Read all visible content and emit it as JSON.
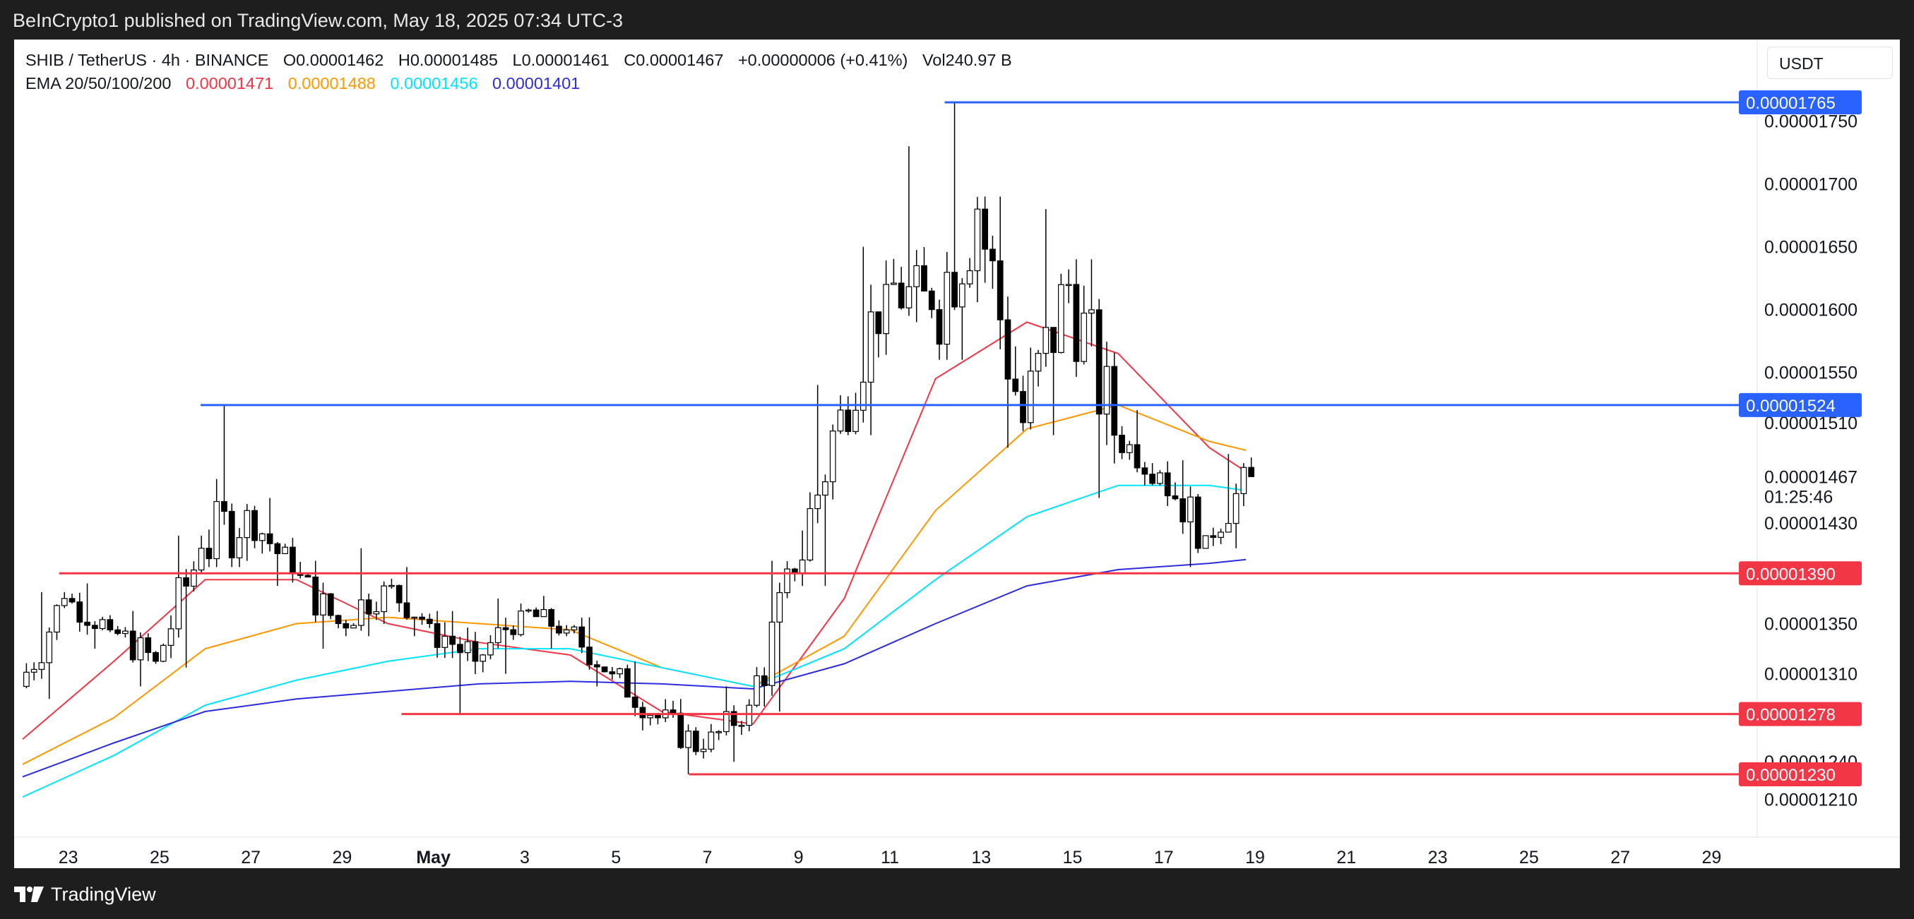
{
  "header": {
    "publisher": "BeInCrypto1 published on TradingView.com, May 18, 2025 07:34 UTC-3"
  },
  "legend": {
    "symbol": "SHIB / TetherUS · 4h · BINANCE",
    "open": "O0.00001462",
    "high": "H0.00001485",
    "low": "L0.00001461",
    "close": "C0.00001467",
    "change": "+0.00000006 (+0.41%)",
    "volume": "Vol240.97 B",
    "ema_label": "EMA 20/50/100/200",
    "ema20": "0.00001471",
    "ema50": "0.00001488",
    "ema100": "0.00001456",
    "ema200": "0.00001401"
  },
  "currency": "USDT",
  "footer": {
    "brand": "TradingView"
  },
  "colors": {
    "ema20": "#f23645",
    "ema50": "#ff9800",
    "ema100": "#00e5ff",
    "ema200": "#2d2de0",
    "resistance": "#2962ff",
    "support": "#f23645",
    "candle_up": "#ffffff",
    "candle_down": "#000000"
  },
  "chart_data": {
    "type": "candlestick",
    "symbol": "SHIB / TetherUS",
    "timeframe": "4h",
    "y_ticks": [
      "0.00001750",
      "0.00001700",
      "0.00001650",
      "0.00001600",
      "0.00001550",
      "0.00001510",
      "0.00001430",
      "0.00001350",
      "0.00001310",
      "0.00001240",
      "0.00001210"
    ],
    "x_ticks": [
      "23",
      "25",
      "27",
      "29",
      "May",
      "3",
      "5",
      "7",
      "9",
      "11",
      "13",
      "15",
      "17",
      "19",
      "21",
      "23",
      "25",
      "27",
      "29"
    ],
    "last_price": "0.00001467",
    "countdown": "01:25:46",
    "levels": [
      {
        "price": 1.765e-05,
        "label": "0.00001765",
        "kind": "resistance",
        "start_day": 12.2
      },
      {
        "price": 1.524e-05,
        "label": "0.00001524",
        "kind": "resistance",
        "start_day": 25.9
      },
      {
        "price": 1.39e-05,
        "label": "0.00001390",
        "kind": "support",
        "start_day": 22.8
      },
      {
        "price": 1.278e-05,
        "label": "0.00001278",
        "kind": "support",
        "start_day": 30.3
      },
      {
        "price": 1.23e-05,
        "label": "0.00001230",
        "kind": "support",
        "start_day": 6.6
      }
    ],
    "ohlc_daily": [
      {
        "day": "Apr 22",
        "o": 1.3e-05,
        "h": 1.375e-05,
        "l": 1.29e-05,
        "c": 1.37e-05
      },
      {
        "day": "Apr 23",
        "o": 1.37e-05,
        "h": 1.382e-05,
        "l": 1.33e-05,
        "c": 1.345e-05
      },
      {
        "day": "Apr 24",
        "o": 1.345e-05,
        "h": 1.36e-05,
        "l": 1.3e-05,
        "c": 1.32e-05
      },
      {
        "day": "Apr 25",
        "o": 1.32e-05,
        "h": 1.42e-05,
        "l": 1.315e-05,
        "c": 1.41e-05
      },
      {
        "day": "Apr 26",
        "o": 1.41e-05,
        "h": 1.524e-05,
        "l": 1.395e-05,
        "c": 1.44e-05
      },
      {
        "day": "Apr 27",
        "o": 1.44e-05,
        "h": 1.45e-05,
        "l": 1.38e-05,
        "c": 1.39e-05
      },
      {
        "day": "Apr 28",
        "o": 1.39e-05,
        "h": 1.4e-05,
        "l": 1.33e-05,
        "c": 1.35e-05
      },
      {
        "day": "Apr 29",
        "o": 1.35e-05,
        "h": 1.41e-05,
        "l": 1.34e-05,
        "c": 1.38e-05
      },
      {
        "day": "Apr 30",
        "o": 1.38e-05,
        "h": 1.395e-05,
        "l": 1.34e-05,
        "c": 1.35e-05
      },
      {
        "day": "May 1",
        "o": 1.35e-05,
        "h": 1.36e-05,
        "l": 1.278e-05,
        "c": 1.32e-05
      },
      {
        "day": "May 2",
        "o": 1.32e-05,
        "h": 1.37e-05,
        "l": 1.31e-05,
        "c": 1.36e-05
      },
      {
        "day": "May 3",
        "o": 1.36e-05,
        "h": 1.372e-05,
        "l": 1.33e-05,
        "c": 1.345e-05
      },
      {
        "day": "May 4",
        "o": 1.345e-05,
        "h": 1.355e-05,
        "l": 1.3e-05,
        "c": 1.31e-05
      },
      {
        "day": "May 5",
        "o": 1.31e-05,
        "h": 1.32e-05,
        "l": 1.265e-05,
        "c": 1.275e-05
      },
      {
        "day": "May 6",
        "o": 1.275e-05,
        "h": 1.29e-05,
        "l": 1.23e-05,
        "c": 1.25e-05
      },
      {
        "day": "May 7",
        "o": 1.25e-05,
        "h": 1.3e-05,
        "l": 1.24e-05,
        "c": 1.285e-05
      },
      {
        "day": "May 8",
        "o": 1.285e-05,
        "h": 1.4e-05,
        "l": 1.28e-05,
        "c": 1.39e-05
      },
      {
        "day": "May 9",
        "o": 1.39e-05,
        "h": 1.54e-05,
        "l": 1.38e-05,
        "c": 1.52e-05
      },
      {
        "day": "May 10",
        "o": 1.52e-05,
        "h": 1.65e-05,
        "l": 1.5e-05,
        "c": 1.62e-05
      },
      {
        "day": "May 11",
        "o": 1.62e-05,
        "h": 1.73e-05,
        "l": 1.59e-05,
        "c": 1.6e-05
      },
      {
        "day": "May 12",
        "o": 1.6e-05,
        "h": 1.765e-05,
        "l": 1.56e-05,
        "c": 1.68e-05
      },
      {
        "day": "May 13",
        "o": 1.68e-05,
        "h": 1.69e-05,
        "l": 1.49e-05,
        "c": 1.51e-05
      },
      {
        "day": "May 14",
        "o": 1.51e-05,
        "h": 1.68e-05,
        "l": 1.5e-05,
        "c": 1.62e-05
      },
      {
        "day": "May 15",
        "o": 1.62e-05,
        "h": 1.64e-05,
        "l": 1.45e-05,
        "c": 1.5e-05
      },
      {
        "day": "May 16",
        "o": 1.5e-05,
        "h": 1.52e-05,
        "l": 1.46e-05,
        "c": 1.47e-05
      },
      {
        "day": "May 17",
        "o": 1.47e-05,
        "h": 1.48e-05,
        "l": 1.395e-05,
        "c": 1.42e-05
      },
      {
        "day": "May 18",
        "o": 1.42e-05,
        "h": 1.485e-05,
        "l": 1.41e-05,
        "c": 1.467e-05
      }
    ],
    "ema_series": [
      {
        "name": "EMA 20",
        "day_values": [
          [
            22,
            1.258e-05
          ],
          [
            24,
            1.32e-05
          ],
          [
            26,
            1.385e-05
          ],
          [
            28,
            1.385e-05
          ],
          [
            30,
            1.35e-05
          ],
          [
            32,
            1.335e-05
          ],
          [
            34,
            1.325e-05
          ],
          [
            36,
            1.28e-05
          ],
          [
            38,
            1.27e-05
          ],
          [
            40,
            1.37e-05
          ],
          [
            42,
            1.545e-05
          ],
          [
            44,
            1.59e-05
          ],
          [
            46,
            1.565e-05
          ],
          [
            48,
            1.49e-05
          ],
          [
            48.8,
            1.471e-05
          ]
        ]
      },
      {
        "name": "EMA 50",
        "day_values": [
          [
            22,
            1.238e-05
          ],
          [
            24,
            1.275e-05
          ],
          [
            26,
            1.33e-05
          ],
          [
            28,
            1.35e-05
          ],
          [
            30,
            1.355e-05
          ],
          [
            32,
            1.35e-05
          ],
          [
            34,
            1.345e-05
          ],
          [
            36,
            1.315e-05
          ],
          [
            38,
            1.3e-05
          ],
          [
            40,
            1.34e-05
          ],
          [
            42,
            1.44e-05
          ],
          [
            44,
            1.505e-05
          ],
          [
            46,
            1.524e-05
          ],
          [
            48,
            1.495e-05
          ],
          [
            48.8,
            1.488e-05
          ]
        ]
      },
      {
        "name": "EMA 100",
        "day_values": [
          [
            22,
            1.212e-05
          ],
          [
            24,
            1.245e-05
          ],
          [
            26,
            1.285e-05
          ],
          [
            28,
            1.305e-05
          ],
          [
            30,
            1.32e-05
          ],
          [
            32,
            1.33e-05
          ],
          [
            34,
            1.33e-05
          ],
          [
            36,
            1.315e-05
          ],
          [
            38,
            1.3e-05
          ],
          [
            40,
            1.33e-05
          ],
          [
            42,
            1.385e-05
          ],
          [
            44,
            1.435e-05
          ],
          [
            46,
            1.46e-05
          ],
          [
            48,
            1.46e-05
          ],
          [
            48.8,
            1.456e-05
          ]
        ]
      },
      {
        "name": "EMA 200",
        "day_values": [
          [
            22,
            1.228e-05
          ],
          [
            24,
            1.255e-05
          ],
          [
            26,
            1.28e-05
          ],
          [
            28,
            1.29e-05
          ],
          [
            30,
            1.296e-05
          ],
          [
            32,
            1.302e-05
          ],
          [
            34,
            1.304e-05
          ],
          [
            36,
            1.302e-05
          ],
          [
            38,
            1.298e-05
          ],
          [
            40,
            1.318e-05
          ],
          [
            42,
            1.35e-05
          ],
          [
            44,
            1.38e-05
          ],
          [
            46,
            1.393e-05
          ],
          [
            48,
            1.398e-05
          ],
          [
            48.8,
            1.401e-05
          ]
        ]
      }
    ],
    "ylim": [
      1.18e-05,
      1.815e-05
    ],
    "xlim_days": [
      22,
      60
    ]
  }
}
